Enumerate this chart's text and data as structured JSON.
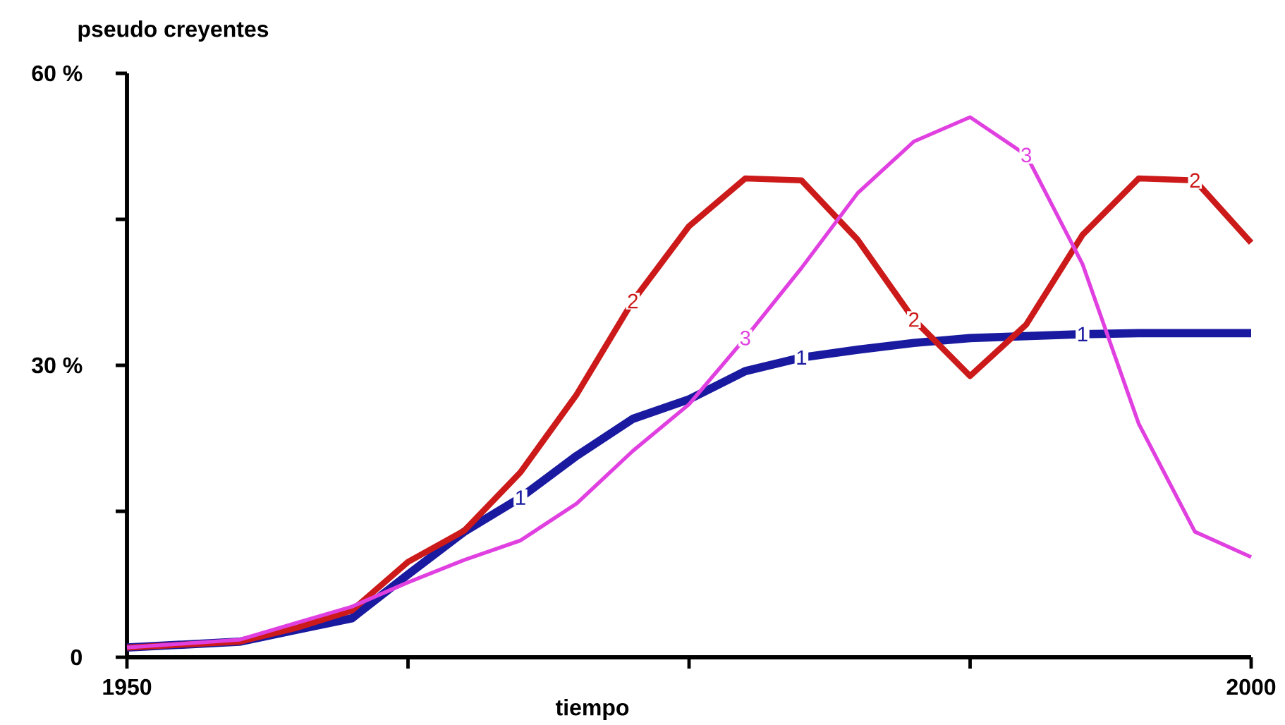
{
  "chart_data": {
    "type": "line",
    "xlabel": "tiempo",
    "ylabel": "pseudo creyentes",
    "x": [
      1950,
      1955,
      1957.5,
      1960,
      1962.5,
      1965,
      1967.5,
      1970,
      1972.5,
      1975,
      1977.5,
      1980,
      1982.5,
      1985,
      1987.5,
      1990,
      1992.5,
      1995,
      1997.5,
      2000
    ],
    "series": [
      {
        "name": "1",
        "color": "#1a1aa0",
        "values": [
          1,
          1.6,
          2.8,
          4,
          8.5,
          12.9,
          16.4,
          20.7,
          24.5,
          26.5,
          29.4,
          30.8,
          31.6,
          32.3,
          32.8,
          33,
          33.2,
          33.3,
          33.3,
          33.3
        ]
      },
      {
        "name": "2",
        "color": "#cc1a1a",
        "values": [
          1,
          1.6,
          3,
          4.8,
          9.8,
          13,
          19,
          27,
          36.6,
          44.3,
          49.2,
          49,
          42.9,
          34.7,
          28.9,
          34.2,
          43.4,
          49.2,
          49,
          42.6
        ]
      },
      {
        "name": "3",
        "color": "#e040e0",
        "values": [
          1,
          1.8,
          3.5,
          5.2,
          7.7,
          10,
          12,
          15.8,
          21.2,
          26,
          32.8,
          40,
          47.7,
          53,
          55.5,
          51.6,
          40.4,
          24,
          12.9,
          10.3
        ]
      }
    ],
    "xlim": [
      1950,
      2000
    ],
    "xticks": [
      1950,
      {
        "value": 1962.5,
        "label": null
      },
      {
        "value": 1975,
        "label": null
      },
      {
        "value": 1987.5,
        "label": null
      },
      2000
    ],
    "ylim": [
      0,
      60
    ],
    "yticks": [
      {
        "value": 0,
        "label": "0"
      },
      {
        "value": 15,
        "label": null
      },
      {
        "value": 30,
        "label": "30 %"
      },
      {
        "value": 45,
        "label": null
      },
      {
        "value": 60,
        "label": "60 %"
      }
    ],
    "grid": false,
    "legend": false,
    "marker": "none",
    "line_style": "solid"
  }
}
